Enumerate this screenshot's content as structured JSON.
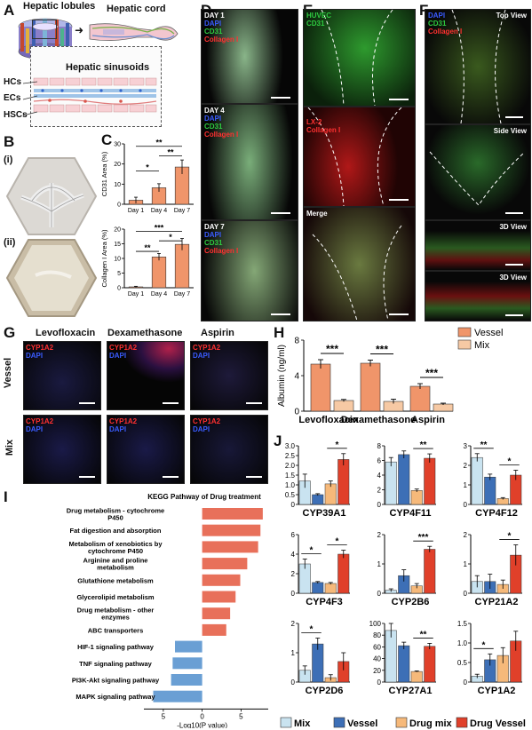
{
  "colors": {
    "dapi": "#3a5cff",
    "cd31": "#2ecc40",
    "collagen": "#ff3030",
    "cyp": "#ff3030",
    "vessel_orange": "#f0956a",
    "mix_peach": "#f6c9a4",
    "j_mix": "#c9e3f0",
    "j_vessel": "#3d6fb6",
    "j_drugmix": "#f6b97a",
    "j_drugvessel": "#e0402a",
    "kegg_red": "#e8705a",
    "kegg_blue": "#6a9fd4"
  },
  "panel_a": {
    "letter": "A",
    "lobules": "Hepatic lobules",
    "cord": "Hepatic cord",
    "sinusoids": "Hepatic sinusoids",
    "hcs": "HCs",
    "ecs": "ECs",
    "hscs": "HSCs"
  },
  "panel_b": {
    "letter": "B",
    "i": "(i)",
    "ii": "(ii)"
  },
  "panel_c": {
    "letter": "C",
    "chart_data": [
      {
        "type": "bar",
        "categories": [
          "Day 1",
          "Day 4",
          "Day 7"
        ],
        "values": [
          2,
          8.2,
          18.5
        ],
        "errors": [
          1.5,
          2,
          3.5
        ],
        "ylabel": "CD31 Area (%)",
        "ylim": [
          0,
          30
        ],
        "yticks": [
          "0",
          "10",
          "20",
          "30"
        ],
        "sig": [
          "*",
          "**",
          "**"
        ]
      },
      {
        "type": "bar",
        "categories": [
          "Day 1",
          "Day 4",
          "Day 7"
        ],
        "values": [
          0.3,
          10.5,
          14.8
        ],
        "errors": [
          0.2,
          1.2,
          2
        ],
        "ylabel": "Collagen I Area (%)",
        "ylim": [
          0,
          20
        ],
        "yticks": [
          "0",
          "5",
          "10",
          "15",
          "20"
        ],
        "sig": [
          "**",
          "*",
          "***"
        ]
      }
    ]
  },
  "panel_d": {
    "letter": "D",
    "images": [
      {
        "day": "DAY 1",
        "dapi": "DAPI",
        "cd31": "CD31",
        "col": "Collagen I"
      },
      {
        "day": "DAY 4",
        "dapi": "DAPI",
        "cd31": "CD31",
        "col": "Collagen I"
      },
      {
        "day": "DAY 7",
        "dapi": "DAPI",
        "cd31": "CD31",
        "col": "Collagen I"
      }
    ]
  },
  "panel_e": {
    "letter": "E",
    "img1": [
      "HUVEC",
      "CD31"
    ],
    "img2": [
      "LX-2",
      "Collagen I"
    ],
    "img3": "Merge"
  },
  "panel_f": {
    "letter": "F",
    "legend": [
      "DAPI",
      "CD31",
      "Collagen I"
    ],
    "views": [
      "Top View",
      "Side View",
      "3D View",
      "3D View"
    ]
  },
  "panel_g": {
    "letter": "G",
    "drugs": [
      "Levofloxacin",
      "Dexamethasone",
      "Aspirin"
    ],
    "rows": [
      "Vessel",
      "Mix"
    ],
    "stain1": "CYP1A2",
    "stain2": "DAPI"
  },
  "panel_h": {
    "letter": "H",
    "chart_data": {
      "type": "bar",
      "categories": [
        "Levofloxacin",
        "Dexamethasone",
        "Aspirin"
      ],
      "series": [
        {
          "name": "Vessel",
          "values": [
            5.3,
            5.4,
            2.8
          ],
          "errors": [
            0.5,
            0.35,
            0.3
          ]
        },
        {
          "name": "Mix",
          "values": [
            1.2,
            1.1,
            0.8
          ],
          "errors": [
            0.12,
            0.25,
            0.1
          ]
        }
      ],
      "ylabel": "Albumin (ng/ml)",
      "ylim": [
        0,
        8
      ],
      "yticks": [
        "0",
        "4",
        "8"
      ],
      "sig": [
        "***",
        "***",
        "***"
      ]
    }
  },
  "panel_i": {
    "letter": "I",
    "chart_data": {
      "type": "bar",
      "title": "KEGG Pathway of Drug treatment",
      "categories": [
        "Drug metabolism - cytochrome P450",
        "Fat digestion and absorption",
        "Metabolism of xenobiotics by cytochrome P450",
        "Arginine and proline metabolism",
        "Glutathione metabolism",
        "Glycerolipid metabolism",
        "Drug metabolism - other enzymes",
        "ABC transporters",
        "HIF-1 signaling pathway",
        "TNF signaling pathway",
        "PI3K-Akt signaling pathway",
        "MAPK signaling pathway"
      ],
      "labels": [
        [
          "Drug metabolism - cytochrome",
          "P450"
        ],
        [
          "Fat digestion and absorption"
        ],
        [
          "Metabolism of xenobiotics by",
          "cytochrome P450"
        ],
        [
          "Arginine and proline",
          "metabolism"
        ],
        [
          "Glutathione metabolism"
        ],
        [
          "Glycerolipid metabolism"
        ],
        [
          "Drug metabolism - other",
          "enzymes"
        ],
        [
          "ABC transporters"
        ],
        [
          "HIF-1 signaling pathway"
        ],
        [
          "TNF signaling pathway"
        ],
        [
          "PI3K-Akt signaling pathway"
        ],
        [
          "MAPK signaling pathway"
        ]
      ],
      "values": [
        7.8,
        7.5,
        7.2,
        5.8,
        4.9,
        4.3,
        3.6,
        3.1,
        -3.5,
        -3.8,
        -4.0,
        -6.3
      ],
      "xlabel": "-Log10(P value)",
      "xlim": [
        -7.5,
        8.5
      ],
      "xticks": [
        -5,
        0,
        5
      ],
      "xticklabels": [
        "5",
        "0",
        "5"
      ]
    }
  },
  "panel_j": {
    "letter": "J",
    "legend": [
      "Mix",
      "Vessel",
      "Drug mix",
      "Drug Vessel"
    ],
    "chart_data": [
      {
        "name": "CYP39A1",
        "values": [
          1.2,
          0.5,
          1.05,
          2.3
        ],
        "errors": [
          0.35,
          0.05,
          0.15,
          0.3
        ],
        "ylim": [
          0,
          3
        ],
        "yticks": [
          "0",
          "0.5",
          "1.0",
          "1.5",
          "2.0",
          "2.5",
          "3.0"
        ],
        "sig": [
          {
            "a": 2,
            "b": 3,
            "t": "*"
          }
        ]
      },
      {
        "name": "CYP4F11",
        "values": [
          5.8,
          6.8,
          1.9,
          6.3
        ],
        "errors": [
          0.6,
          0.5,
          0.2,
          0.6
        ],
        "ylim": [
          0,
          8
        ],
        "yticks": [
          "0",
          "2",
          "4",
          "6",
          "8"
        ],
        "sig": [
          {
            "a": 2,
            "b": 3,
            "t": "**"
          }
        ]
      },
      {
        "name": "CYP4F12",
        "values": [
          2.4,
          1.4,
          0.3,
          1.5
        ],
        "errors": [
          0.2,
          0.15,
          0.05,
          0.25
        ],
        "ylim": [
          0,
          3
        ],
        "yticks": [
          "0",
          "1",
          "2",
          "3"
        ],
        "sig": [
          {
            "a": 0,
            "b": 1,
            "t": "**"
          },
          {
            "a": 2,
            "b": 3,
            "t": "*"
          }
        ]
      },
      {
        "name": "CYP4F3",
        "values": [
          3.0,
          1.1,
          1.0,
          4.0
        ],
        "errors": [
          0.5,
          0.1,
          0.1,
          0.4
        ],
        "ylim": [
          0,
          6
        ],
        "yticks": [
          "0",
          "2",
          "4",
          "6"
        ],
        "sig": [
          {
            "a": 0,
            "b": 1,
            "t": "*"
          },
          {
            "a": 2,
            "b": 3,
            "t": "*"
          }
        ]
      },
      {
        "name": "CYP2B6",
        "values": [
          0.1,
          0.6,
          0.25,
          1.5
        ],
        "errors": [
          0.05,
          0.2,
          0.08,
          0.1
        ],
        "ylim": [
          0,
          2
        ],
        "yticks": [
          "0",
          "1",
          "2"
        ],
        "sig": [
          {
            "a": 2,
            "b": 3,
            "t": "***"
          }
        ]
      },
      {
        "name": "CYP21A2",
        "values": [
          0.4,
          0.4,
          0.3,
          1.3
        ],
        "errors": [
          0.2,
          0.25,
          0.15,
          0.35
        ],
        "ylim": [
          0,
          2
        ],
        "yticks": [
          "0",
          "1",
          "2"
        ],
        "sig": [
          {
            "a": 2,
            "b": 3,
            "t": "*"
          }
        ]
      },
      {
        "name": "CYP2D6",
        "values": [
          0.4,
          1.3,
          0.15,
          0.7
        ],
        "errors": [
          0.15,
          0.2,
          0.1,
          0.3
        ],
        "ylim": [
          0,
          2
        ],
        "yticks": [
          "0",
          "1",
          "2"
        ],
        "sig": [
          {
            "a": 0,
            "b": 1,
            "t": "*"
          }
        ]
      },
      {
        "name": "CYP27A1",
        "values": [
          88,
          62,
          18,
          61
        ],
        "errors": [
          12,
          6,
          1,
          5
        ],
        "ylim": [
          0,
          100
        ],
        "yticks": [
          "0",
          "20",
          "40",
          "60",
          "80",
          "100"
        ],
        "sig": [
          {
            "a": 2,
            "b": 3,
            "t": "**"
          }
        ]
      },
      {
        "name": "CYP1A2",
        "values": [
          0.15,
          0.57,
          0.68,
          1.05
        ],
        "errors": [
          0.05,
          0.15,
          0.2,
          0.25
        ],
        "ylim": [
          0,
          1.5
        ],
        "yticks": [
          "0",
          "0.5",
          "1.0",
          "1.5"
        ],
        "sig": [
          {
            "a": 0,
            "b": 1,
            "t": "*"
          }
        ]
      }
    ]
  }
}
